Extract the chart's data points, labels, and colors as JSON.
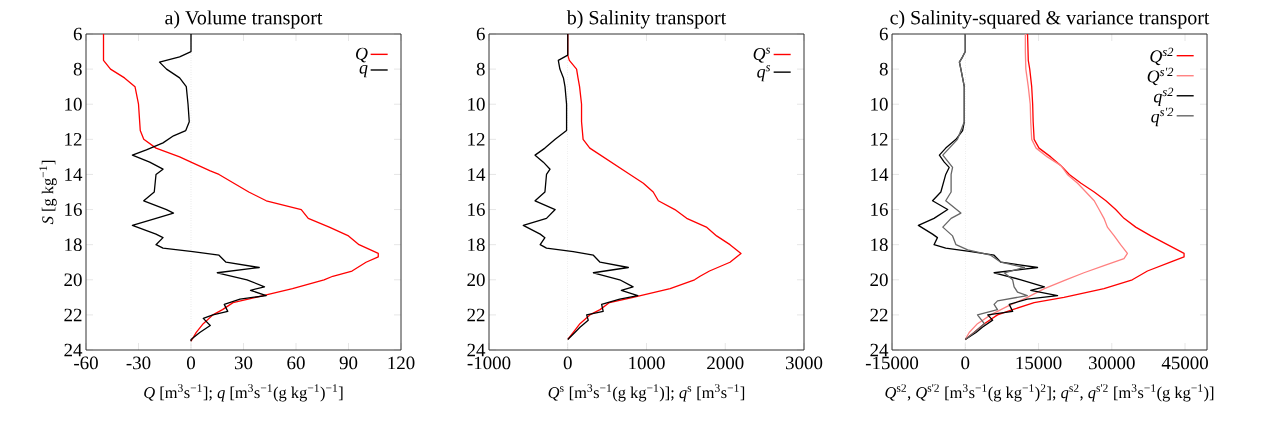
{
  "chart_data": [
    {
      "type": "line",
      "title": "a) Volume transport",
      "xlabel": "*Q* [m$^{3}$s$^{−1}$]; *q* [m$^{3}$s$^{−1}$(g kg$^{−1}$)$^{−1}$]",
      "ylabel": "*S* [g kg$^{−1}$]",
      "xlim": [
        -60,
        120
      ],
      "xticks": [
        -60,
        -30,
        0,
        30,
        60,
        90,
        120
      ],
      "ylim": [
        24,
        6
      ],
      "yticks": [
        6,
        8,
        10,
        12,
        14,
        16,
        18,
        20,
        22,
        24
      ],
      "legend": "top right",
      "marker": "none",
      "ref_lines": [
        {
          "axis": "x",
          "value": 0,
          "color": "#808080",
          "line_style": "dotted"
        }
      ],
      "series": [
        {
          "name": "Q",
          "color": "#ff0000",
          "x": [
            -50,
            -50,
            -46,
            -38,
            -32,
            -30,
            -29,
            -27,
            -20,
            -6.5,
            0,
            11,
            16,
            33,
            43,
            63,
            67,
            79,
            90,
            96,
            107,
            107,
            100,
            92,
            81,
            76,
            58,
            37,
            24,
            18,
            12.5,
            7,
            3,
            0
          ],
          "values": [
            6,
            7.5,
            8,
            8.5,
            9,
            10,
            11.5,
            12,
            12.5,
            13,
            13.3,
            13.8,
            14,
            15,
            15.5,
            16,
            16.5,
            17,
            17.5,
            18,
            18.5,
            18.7,
            19,
            19.5,
            19.8,
            20,
            20.5,
            21,
            21.3,
            21.7,
            22,
            22.5,
            23,
            23.5
          ]
        },
        {
          "name": "q",
          "color": "#000000",
          "x": [
            0,
            0,
            -6.5,
            -18,
            -14,
            -6.5,
            -2.7,
            -1.7,
            -1,
            -3,
            -10,
            -16,
            -25.5,
            -33.5,
            -23.6,
            -16,
            -20,
            -21,
            -27,
            -14,
            -10,
            -20,
            -33.5,
            -20,
            -16,
            -20,
            -16,
            1,
            16,
            20,
            39,
            15,
            32,
            42,
            34,
            43,
            28,
            19,
            21,
            12.5,
            7,
            11,
            5,
            0,
            0
          ],
          "values": [
            6,
            7,
            7.3,
            7.6,
            8,
            8.5,
            9,
            10,
            11,
            11.5,
            11.8,
            12.2,
            12.6,
            12.9,
            13.3,
            13.7,
            14,
            15,
            15.5,
            16,
            16.2,
            16.5,
            16.9,
            17.4,
            17.6,
            18,
            18.2,
            18.4,
            18.6,
            19,
            19.3,
            19.6,
            20,
            20.4,
            20.6,
            20.9,
            21.1,
            21.4,
            21.8,
            22,
            22.2,
            22.6,
            23,
            23.4,
            23.5
          ]
        }
      ]
    },
    {
      "type": "line",
      "title": "b) Salinity transport",
      "xlabel": "*Q*$^{s}$ [m$^{3}$s$^{−1}$(g kg$^{−1}$)]; *q*$^{s}$ [m$^{3}$s$^{−1}$]",
      "xlim": [
        -1000,
        3000
      ],
      "xticks": [
        -1000,
        0,
        1000,
        2000,
        3000
      ],
      "ylim": [
        24,
        6
      ],
      "yticks": [
        6,
        8,
        10,
        12,
        14,
        16,
        18,
        20,
        22,
        24
      ],
      "legend": "top right",
      "marker": "none",
      "ref_lines": [
        {
          "axis": "x",
          "value": 0,
          "color": "#808080",
          "line_style": "dotted"
        }
      ],
      "series": [
        {
          "name": "Q$^{s}$",
          "color": "#ff0000",
          "x": [
            0,
            0,
            20,
            112,
            130,
            150,
            175,
            175,
            195,
            280,
            450,
            620,
            790,
            960,
            1085,
            1150,
            1360,
            1510,
            1760,
            1890,
            2060,
            2200,
            2060,
            1800,
            1680,
            1610,
            1300,
            830,
            530,
            410,
            280,
            155,
            70,
            0
          ],
          "values": [
            6,
            7.2,
            7.5,
            8,
            8.5,
            9,
            10,
            11,
            12,
            12.5,
            13,
            13.5,
            14,
            14.5,
            15,
            15.5,
            16,
            16.5,
            17,
            17.5,
            18,
            18.5,
            19,
            19.5,
            19.8,
            20,
            20.5,
            21,
            21.3,
            21.7,
            22,
            22.5,
            23,
            23.4
          ]
        },
        {
          "name": "q$^{s}$",
          "color": "#000000",
          "x": [
            0,
            0,
            -120,
            -100,
            -55,
            -35,
            -15,
            -15,
            -160,
            -290,
            -415,
            -310,
            -225,
            -270,
            -290,
            -415,
            -160,
            -270,
            -565,
            -350,
            -290,
            -350,
            -270,
            70,
            325,
            410,
            770,
            325,
            660,
            830,
            680,
            890,
            660,
            430,
            450,
            240,
            260,
            155,
            90,
            0
          ],
          "values": [
            6,
            7.2,
            7.5,
            8,
            8.5,
            9,
            10,
            11.5,
            12,
            12.5,
            12.9,
            13.3,
            13.7,
            14,
            15,
            15.5,
            16,
            16.5,
            16.9,
            17.4,
            17.6,
            18,
            18.2,
            18.4,
            18.6,
            19,
            19.3,
            19.6,
            20,
            20.4,
            20.6,
            20.9,
            21.1,
            21.4,
            21.8,
            22,
            22.3,
            22.7,
            23,
            23.4
          ]
        }
      ]
    },
    {
      "type": "line",
      "title": "c) Salinity-squared & variance transport",
      "xlabel": "*Q*$^{s2}$, *Q*$^{s'2}$ [m$^{3}$s$^{−1}$(g kg$^{−1}$)$^{2}$]; *q*$^{s2}$, *q*$^{s'2}$ [m$^{3}$s$^{−1}$(g kg$^{−1}$)]",
      "xlim": [
        -15000,
        49500
      ],
      "xticks": [
        -15000,
        0,
        15000,
        30000,
        45000
      ],
      "ylim": [
        24,
        6
      ],
      "yticks": [
        6,
        8,
        10,
        12,
        14,
        16,
        18,
        20,
        22,
        24
      ],
      "legend": "top right",
      "marker": "none",
      "ref_lines": [
        {
          "axis": "x",
          "value": 0,
          "color": "#808080",
          "line_style": "dotted"
        }
      ],
      "series": [
        {
          "name": "Q$^{s2}$",
          "color": "#ff0000",
          "x": [
            12750,
            12900,
            13200,
            13600,
            13800,
            13900,
            14100,
            15100,
            17500,
            19600,
            21300,
            23700,
            26400,
            28800,
            30800,
            32500,
            34900,
            38000,
            41400,
            44800,
            44800,
            42000,
            37300,
            34200,
            28400,
            20200,
            14100,
            9700,
            6600,
            3900,
            1800,
            0
          ],
          "values": [
            6,
            7.5,
            8,
            9,
            10,
            11,
            12,
            12.5,
            13,
            13.5,
            14,
            14.5,
            15,
            15.5,
            16,
            16.5,
            17,
            17.5,
            18,
            18.5,
            18.7,
            19,
            19.5,
            20,
            20.5,
            21,
            21.3,
            21.7,
            22,
            22.5,
            23,
            23.4
          ]
        },
        {
          "name": "Q$^{s'2}$",
          "color": "#ff8080",
          "x": [
            12300,
            12300,
            12400,
            12900,
            13300,
            13400,
            13600,
            14500,
            16800,
            19600,
            20900,
            23000,
            24700,
            26400,
            27400,
            28400,
            29100,
            30500,
            31800,
            33200,
            32500,
            28400,
            24300,
            20600,
            16200,
            12700,
            8700,
            5200,
            2500,
            800,
            0
          ],
          "values": [
            6,
            7,
            8,
            9,
            10,
            11,
            12,
            12.5,
            13,
            13.5,
            14,
            14.5,
            15,
            15.5,
            16,
            16.5,
            17,
            17.5,
            18,
            18.5,
            18.8,
            19.2,
            19.6,
            20,
            20.5,
            21,
            21.5,
            22,
            22.5,
            23,
            23.4
          ]
        },
        {
          "name": "q$^{s2}$",
          "color": "#000000",
          "x": [
            0,
            0,
            -550,
            -1200,
            -900,
            -200,
            -200,
            -550,
            -1900,
            -4000,
            -5300,
            -4300,
            -3300,
            -4000,
            -5000,
            -6700,
            -3600,
            -6400,
            -9600,
            -6700,
            -5700,
            -6400,
            -4000,
            1200,
            5900,
            7300,
            14800,
            5900,
            11400,
            16200,
            13400,
            18900,
            12700,
            9000,
            9700,
            4600,
            5600,
            3500,
            2200,
            0
          ],
          "values": [
            6,
            7,
            7.3,
            7.6,
            8,
            9,
            11,
            11.5,
            12,
            12.5,
            12.9,
            13.3,
            13.6,
            14,
            15,
            15.5,
            16,
            16.5,
            16.9,
            17.4,
            17.6,
            18,
            18.2,
            18.4,
            18.6,
            19,
            19.3,
            19.6,
            20,
            20.4,
            20.6,
            20.9,
            21.1,
            21.4,
            21.8,
            22,
            22.3,
            22.7,
            23,
            23.4
          ]
        },
        {
          "name": "q$^{s'2}$",
          "color": "#666666",
          "x": [
            0,
            0,
            -550,
            -1200,
            -900,
            -200,
            -200,
            -1600,
            -4600,
            -2600,
            -2900,
            -2900,
            -4000,
            -900,
            -2900,
            -4600,
            -2600,
            -1900,
            500,
            5200,
            7300,
            12100,
            8000,
            9700,
            10000,
            10700,
            12700,
            6600,
            5900,
            6600,
            2500,
            3900,
            1800,
            0
          ],
          "values": [
            6,
            7,
            7.3,
            7.6,
            8,
            9,
            11,
            12,
            12.9,
            13.6,
            14,
            15,
            15.5,
            16.2,
            16.5,
            17,
            17.5,
            18,
            18.3,
            18.6,
            19,
            19.3,
            19.6,
            20,
            20.4,
            20.7,
            20.9,
            21.2,
            21.4,
            21.7,
            22,
            22.5,
            23,
            23.4
          ]
        }
      ]
    }
  ]
}
